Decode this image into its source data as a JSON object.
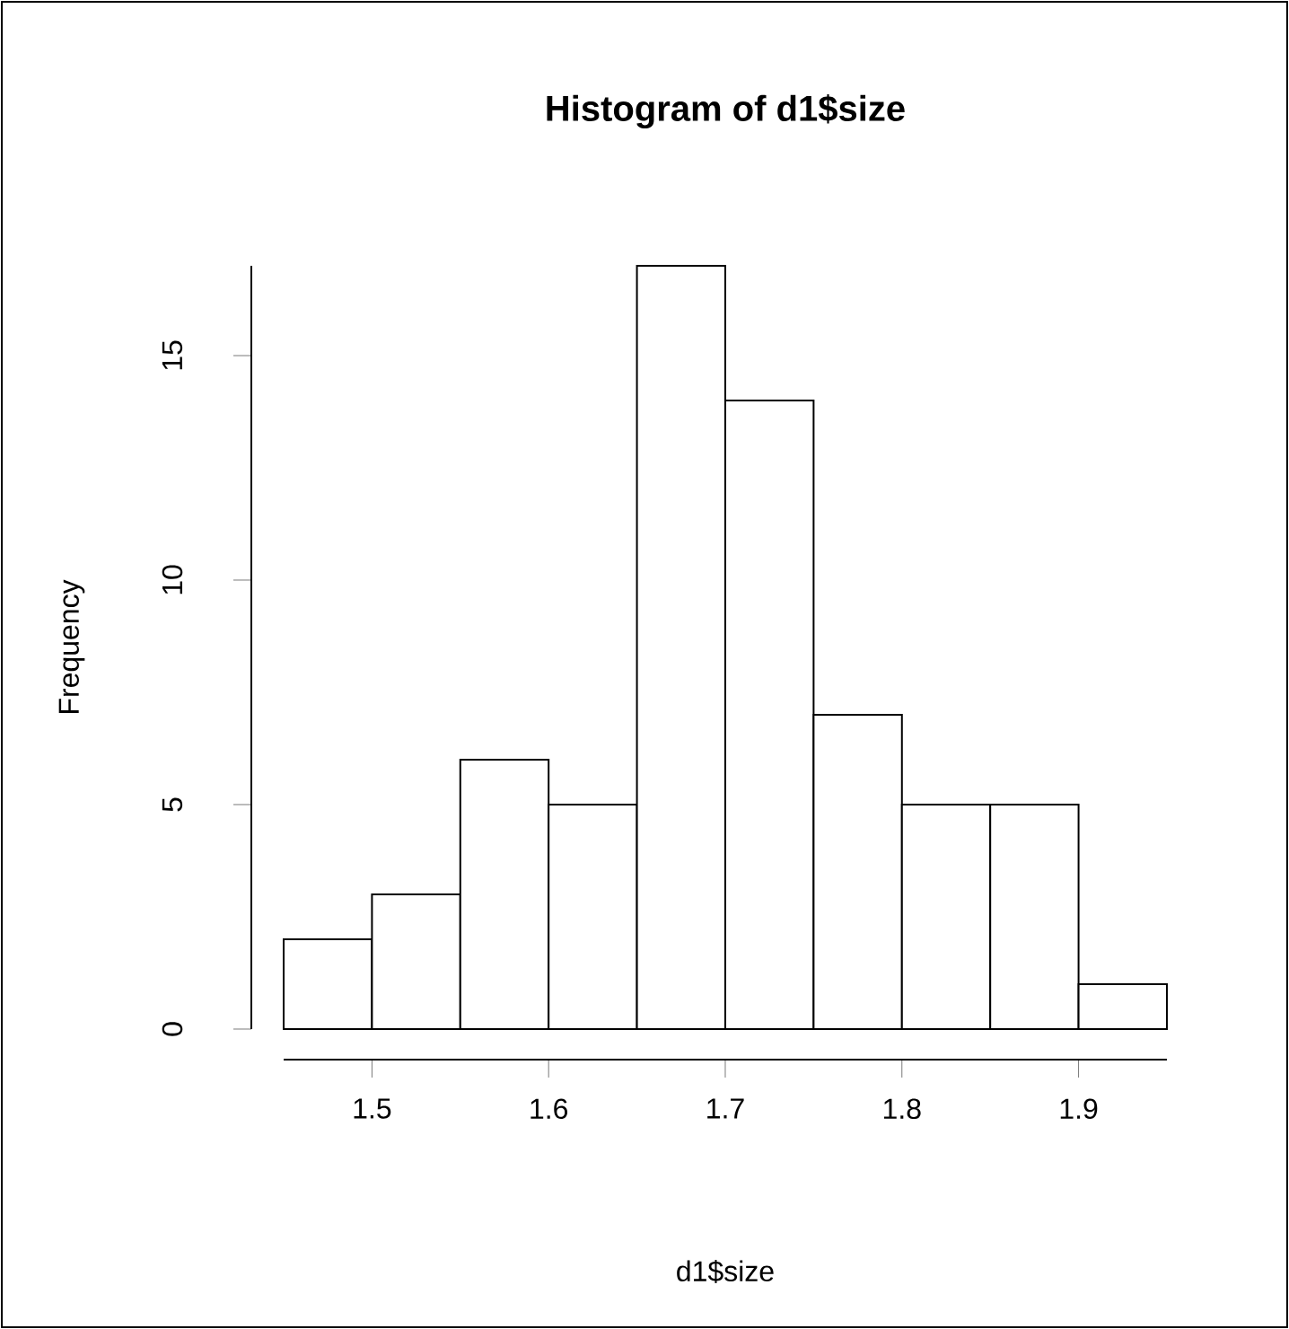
{
  "chart_data": {
    "type": "histogram",
    "title": "Histogram of d1$size",
    "xlabel": "d1$size",
    "ylabel": "Frequency",
    "bins": [
      1.45,
      1.5,
      1.55,
      1.6,
      1.65,
      1.7,
      1.75,
      1.8,
      1.85,
      1.9,
      1.95
    ],
    "values": [
      2,
      3,
      6,
      5,
      17,
      14,
      7,
      5,
      5,
      1
    ],
    "color": "#ffffff",
    "xlim": [
      1.45,
      1.95
    ],
    "ylim": [
      0,
      17
    ],
    "xticks": [
      1.5,
      1.6,
      1.7,
      1.8,
      1.9
    ],
    "yticks": [
      0,
      5,
      10,
      15
    ],
    "grid": false
  }
}
